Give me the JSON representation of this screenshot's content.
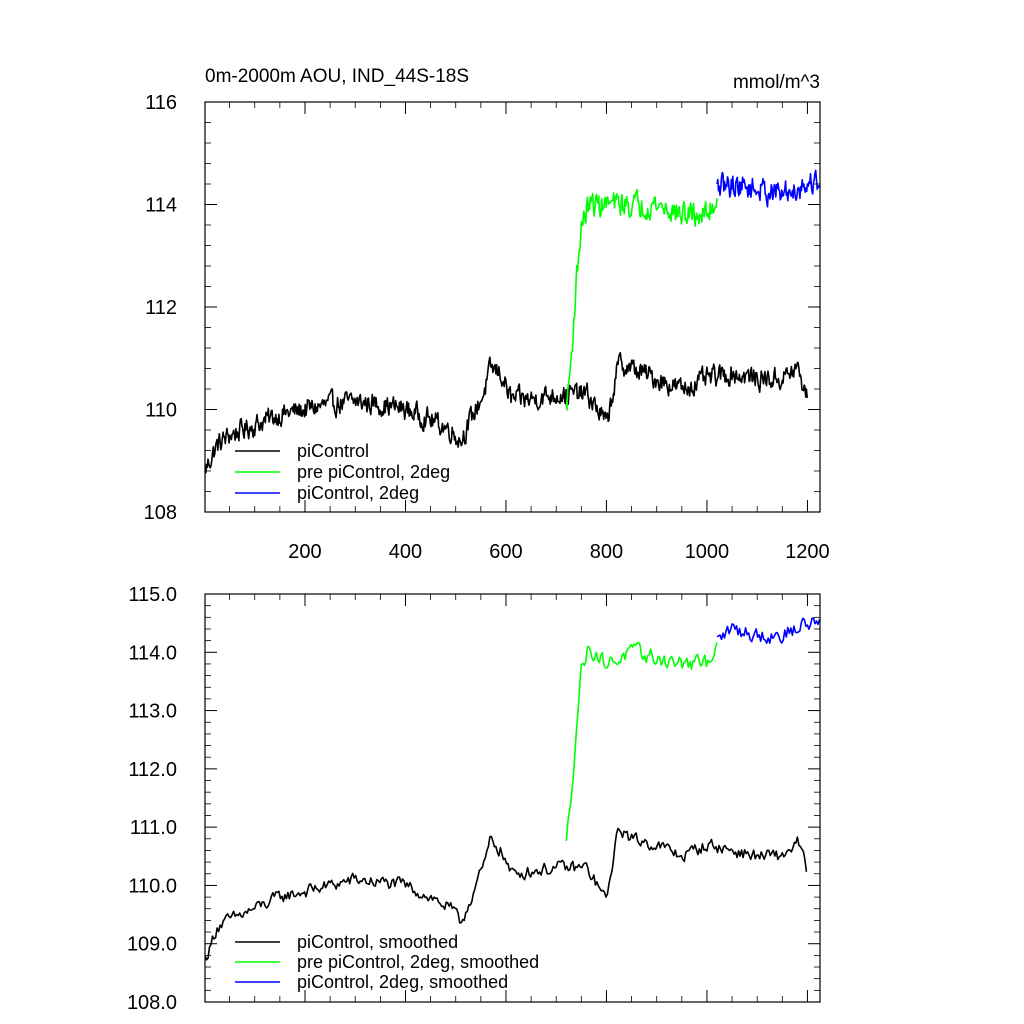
{
  "chart_data": [
    {
      "type": "line",
      "title": "0m-2000m AOU, IND_44S-18S",
      "units": "mmol/m^3",
      "xlim": [
        1,
        1225
      ],
      "ylim": [
        108,
        116
      ],
      "x_ticks": [
        200,
        400,
        600,
        800,
        1000,
        1200
      ],
      "x_tick_labels": [
        "200",
        "400",
        "600",
        "800",
        "1000",
        "1200"
      ],
      "y_ticks": [
        108,
        110,
        112,
        114,
        116
      ],
      "y_tick_labels": [
        "108",
        "110",
        "112",
        "114",
        "116"
      ],
      "legend_position": "lower-left",
      "series": [
        {
          "name": "piControl",
          "color": "#000000",
          "noise": 0.33,
          "points": [
            [
              1,
              108.8
            ],
            [
              10,
              109.0
            ],
            [
              25,
              109.3
            ],
            [
              50,
              109.5
            ],
            [
              100,
              109.7
            ],
            [
              150,
              109.9
            ],
            [
              200,
              110.0
            ],
            [
              250,
              110.1
            ],
            [
              300,
              110.15
            ],
            [
              350,
              110.1
            ],
            [
              400,
              110.0
            ],
            [
              450,
              109.8
            ],
            [
              490,
              109.6
            ],
            [
              510,
              109.4
            ],
            [
              540,
              110.0
            ],
            [
              555,
              110.3
            ],
            [
              570,
              110.8
            ],
            [
              590,
              110.7
            ],
            [
              610,
              110.2
            ],
            [
              650,
              110.2
            ],
            [
              700,
              110.3
            ],
            [
              760,
              110.3
            ],
            [
              790,
              109.9
            ],
            [
              800,
              109.7
            ],
            [
              810,
              110.2
            ],
            [
              825,
              110.9
            ],
            [
              850,
              110.8
            ],
            [
              900,
              110.6
            ],
            [
              950,
              110.4
            ],
            [
              1000,
              110.6
            ],
            [
              1050,
              110.7
            ],
            [
              1100,
              110.6
            ],
            [
              1150,
              110.6
            ],
            [
              1180,
              110.8
            ],
            [
              1200,
              110.2
            ]
          ]
        },
        {
          "name": "pre piControl, 2deg",
          "color": "#00ff00",
          "noise": 0.38,
          "points": [
            [
              720,
              110.0
            ],
            [
              730,
              111.0
            ],
            [
              740,
              112.5
            ],
            [
              750,
              113.6
            ],
            [
              765,
              114.0
            ],
            [
              800,
              114.0
            ],
            [
              850,
              114.0
            ],
            [
              900,
              114.0
            ],
            [
              950,
              113.8
            ],
            [
              1000,
              113.8
            ],
            [
              1020,
              114.1
            ]
          ]
        },
        {
          "name": "piControl, 2deg",
          "color": "#0000ff",
          "noise": 0.38,
          "points": [
            [
              1020,
              114.3
            ],
            [
              1050,
              114.4
            ],
            [
              1100,
              114.3
            ],
            [
              1150,
              114.2
            ],
            [
              1200,
              114.4
            ],
            [
              1225,
              114.5
            ]
          ]
        }
      ]
    },
    {
      "type": "line",
      "xlim": [
        1,
        1225
      ],
      "ylim": [
        108,
        115
      ],
      "x_ticks": [
        200,
        400,
        600,
        800,
        1000,
        1200
      ],
      "y_ticks": [
        108,
        109,
        110,
        111,
        112,
        113,
        114,
        115
      ],
      "y_tick_labels": [
        "108.0",
        "109.0",
        "110.0",
        "111.0",
        "112.0",
        "113.0",
        "114.0",
        "115.0"
      ],
      "legend_position": "lower-left",
      "series": [
        {
          "name": "piControl, smoothed",
          "color": "#000000",
          "noise": 0.18,
          "points": [
            [
              1,
              108.75
            ],
            [
              10,
              108.9
            ],
            [
              25,
              109.3
            ],
            [
              50,
              109.4
            ],
            [
              100,
              109.6
            ],
            [
              150,
              109.8
            ],
            [
              200,
              109.9
            ],
            [
              250,
              110.0
            ],
            [
              300,
              110.1
            ],
            [
              350,
              110.05
            ],
            [
              400,
              110.0
            ],
            [
              450,
              109.8
            ],
            [
              490,
              109.6
            ],
            [
              510,
              109.35
            ],
            [
              540,
              110.0
            ],
            [
              555,
              110.3
            ],
            [
              570,
              110.8
            ],
            [
              590,
              110.6
            ],
            [
              610,
              110.2
            ],
            [
              650,
              110.25
            ],
            [
              700,
              110.3
            ],
            [
              760,
              110.3
            ],
            [
              790,
              109.9
            ],
            [
              800,
              109.7
            ],
            [
              810,
              110.3
            ],
            [
              825,
              111.0
            ],
            [
              850,
              110.8
            ],
            [
              900,
              110.7
            ],
            [
              950,
              110.5
            ],
            [
              1000,
              110.7
            ],
            [
              1050,
              110.6
            ],
            [
              1100,
              110.5
            ],
            [
              1150,
              110.5
            ],
            [
              1180,
              110.75
            ],
            [
              1200,
              110.25
            ]
          ]
        },
        {
          "name": "pre piControl, 2deg, smoothed",
          "color": "#00ff00",
          "noise": 0.22,
          "points": [
            [
              720,
              110.7
            ],
            [
              730,
              111.6
            ],
            [
              740,
              112.7
            ],
            [
              750,
              113.7
            ],
            [
              765,
              114.1
            ],
            [
              800,
              113.8
            ],
            [
              850,
              114.0
            ],
            [
              900,
              113.9
            ],
            [
              950,
              113.8
            ],
            [
              1000,
              113.8
            ],
            [
              1020,
              114.2
            ]
          ]
        },
        {
          "name": "piControl, 2deg, smoothed",
          "color": "#0000ff",
          "noise": 0.22,
          "points": [
            [
              1020,
              114.2
            ],
            [
              1050,
              114.4
            ],
            [
              1100,
              114.3
            ],
            [
              1150,
              114.3
            ],
            [
              1200,
              114.5
            ],
            [
              1225,
              114.55
            ]
          ]
        }
      ]
    }
  ]
}
